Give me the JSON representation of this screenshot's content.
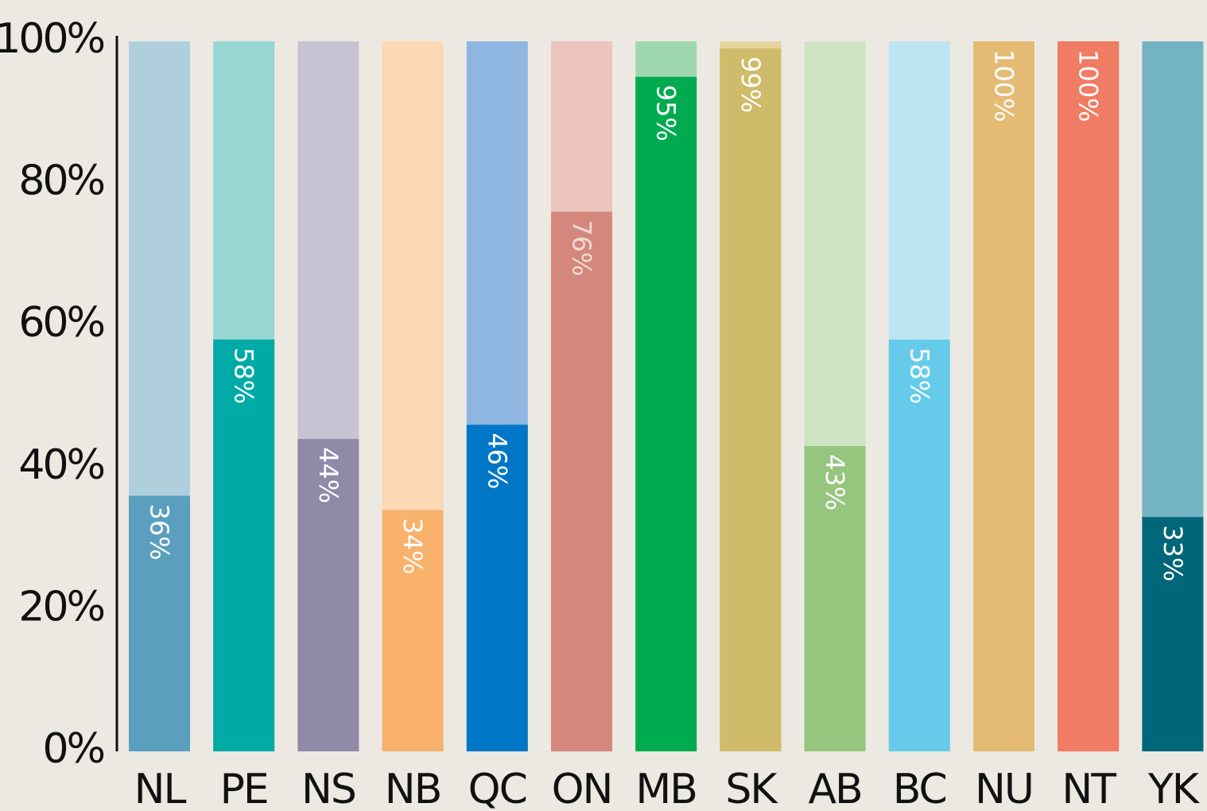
{
  "chart_data": {
    "type": "bar",
    "stacked_background": true,
    "categories": [
      "NL",
      "PE",
      "NS",
      "NB",
      "QC",
      "ON",
      "MB",
      "SK",
      "AB",
      "BC",
      "NU",
      "NT",
      "YK"
    ],
    "values": [
      36,
      58,
      44,
      34,
      46,
      76,
      95,
      99,
      43,
      58,
      100,
      100,
      33
    ],
    "data_labels": [
      "36%",
      "58%",
      "44%",
      "34%",
      "46%",
      "76%",
      "95%",
      "99%",
      "43%",
      "58%",
      "100%",
      "100%",
      "33%"
    ],
    "ylim": [
      0,
      100
    ],
    "yticks": [
      0,
      20,
      40,
      60,
      80,
      100
    ],
    "ytick_labels": [
      "0%",
      "20%",
      "40%",
      "60%",
      "80%",
      "100%"
    ],
    "grid": false,
    "colors": {
      "fill": [
        "#5a9fbe",
        "#00aaa6",
        "#9189a8",
        "#f8b26c",
        "#0077c6",
        "#d4877c",
        "#00ab50",
        "#cfbb6a",
        "#96c57e",
        "#66cbeb",
        "#e5bb74",
        "#f07c63",
        "#00667a"
      ],
      "track": [
        "#b0cfdd",
        "#96d7d4",
        "#c8c3d3",
        "#fcd8b4",
        "#8fb5e1",
        "#ebc5bc",
        "#9fd8b0",
        "#e5d39d",
        "#cde3c2",
        "#bde5f4",
        "#e5bb74",
        "#f07c63",
        "#74b3c4"
      ],
      "label": [
        "#ffffff",
        "#ffffff",
        "#ffffff",
        "#ffffff",
        "#ffffff",
        "#f2d9d4",
        "#ffffff",
        "#ffffff",
        "#ffffff",
        "#ffffff",
        "#ffffff",
        "#ffffff",
        "#ffffff"
      ],
      "axis": "#111111",
      "background": "#ece9e2"
    }
  }
}
